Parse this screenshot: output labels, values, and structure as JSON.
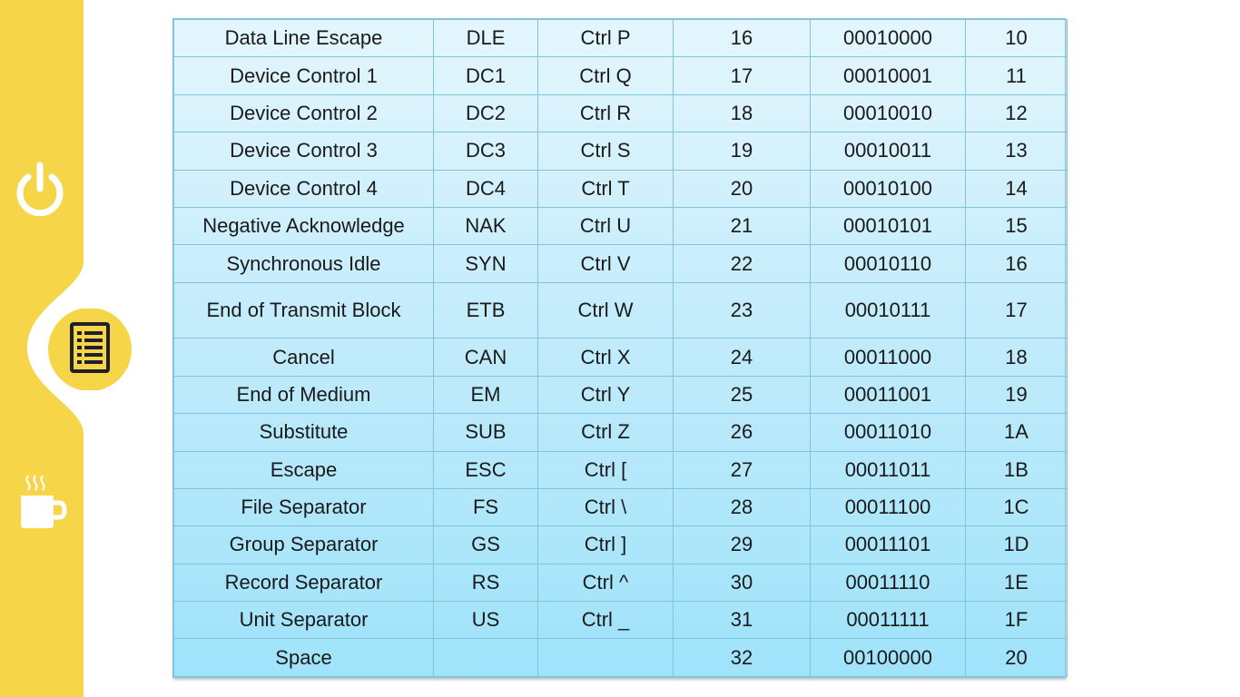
{
  "sidebar": {
    "accent_color": "#f7d548",
    "icon_color": "#ffffff",
    "active_icon_color": "#1f1f2e",
    "items": [
      {
        "icon": "power-icon",
        "active": false
      },
      {
        "icon": "list-icon",
        "active": true
      },
      {
        "icon": "coffee-cup-icon",
        "active": false
      }
    ]
  },
  "table": {
    "rows": [
      [
        "Data Line Escape",
        "DLE",
        "Ctrl P",
        "16",
        "00010000",
        "10"
      ],
      [
        "Device Control 1",
        "DC1",
        "Ctrl Q",
        "17",
        "00010001",
        "11"
      ],
      [
        "Device Control 2",
        "DC2",
        "Ctrl R",
        "18",
        "00010010",
        "12"
      ],
      [
        "Device Control 3",
        "DC3",
        "Ctrl S",
        "19",
        "00010011",
        "13"
      ],
      [
        "Device Control 4",
        "DC4",
        "Ctrl T",
        "20",
        "00010100",
        "14"
      ],
      [
        "Negative Acknowledge",
        "NAK",
        "Ctrl U",
        "21",
        "00010101",
        "15"
      ],
      [
        "Synchronous Idle",
        "SYN",
        "Ctrl V",
        "22",
        "00010110",
        "16"
      ],
      [
        "End of Transmit Block",
        "ETB",
        "Ctrl W",
        "23",
        "00010111",
        "17"
      ],
      [
        "Cancel",
        "CAN",
        "Ctrl X",
        "24",
        "00011000",
        "18"
      ],
      [
        "End of Medium",
        "EM",
        "Ctrl Y",
        "25",
        "00011001",
        "19"
      ],
      [
        "Substitute",
        "SUB",
        "Ctrl Z",
        "26",
        "00011010",
        "1A"
      ],
      [
        "Escape",
        "ESC",
        "Ctrl [",
        "27",
        "00011011",
        "1B"
      ],
      [
        "File Separator",
        "FS",
        "Ctrl \\",
        "28",
        "00011100",
        "1C"
      ],
      [
        "Group Separator",
        "GS",
        "Ctrl ]",
        "29",
        "00011101",
        "1D"
      ],
      [
        "Record Separator",
        "RS",
        "Ctrl ^",
        "30",
        "00011110",
        "1E"
      ],
      [
        "Unit Separator",
        "US",
        "Ctrl _",
        "31",
        "00011111",
        "1F"
      ],
      [
        "Space",
        "",
        "",
        "32",
        "00100000",
        "20"
      ]
    ]
  }
}
